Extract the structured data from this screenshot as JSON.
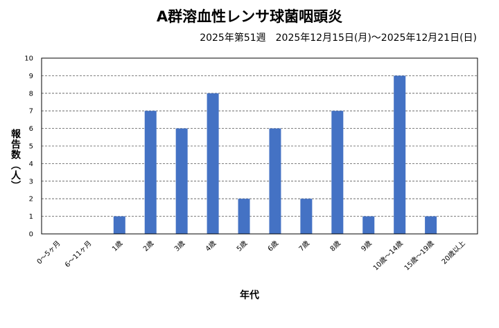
{
  "chart_data": {
    "type": "bar",
    "title": "A群溶血性レンサ球菌咽頭炎",
    "subtitle": "2025年第51週　2025年12月15日(月)～2025年12月21日(日)",
    "ylabel": "報告数（人）",
    "xlabel": "年代",
    "categories": [
      "0～5ヶ月",
      "6～11ヶ月",
      "1歳",
      "2歳",
      "3歳",
      "4歳",
      "5歳",
      "6歳",
      "7歳",
      "8歳",
      "9歳",
      "10歳～14歳",
      "15歳～19歳",
      "20歳以上"
    ],
    "values": [
      0,
      0,
      1,
      7,
      6,
      8,
      2,
      6,
      2,
      7,
      1,
      9,
      1,
      0
    ],
    "ylim": [
      0,
      10
    ],
    "yticks": [
      0,
      1,
      2,
      3,
      4,
      5,
      6,
      7,
      8,
      9,
      10
    ],
    "grid": true,
    "bar_color": "#4472C4"
  }
}
